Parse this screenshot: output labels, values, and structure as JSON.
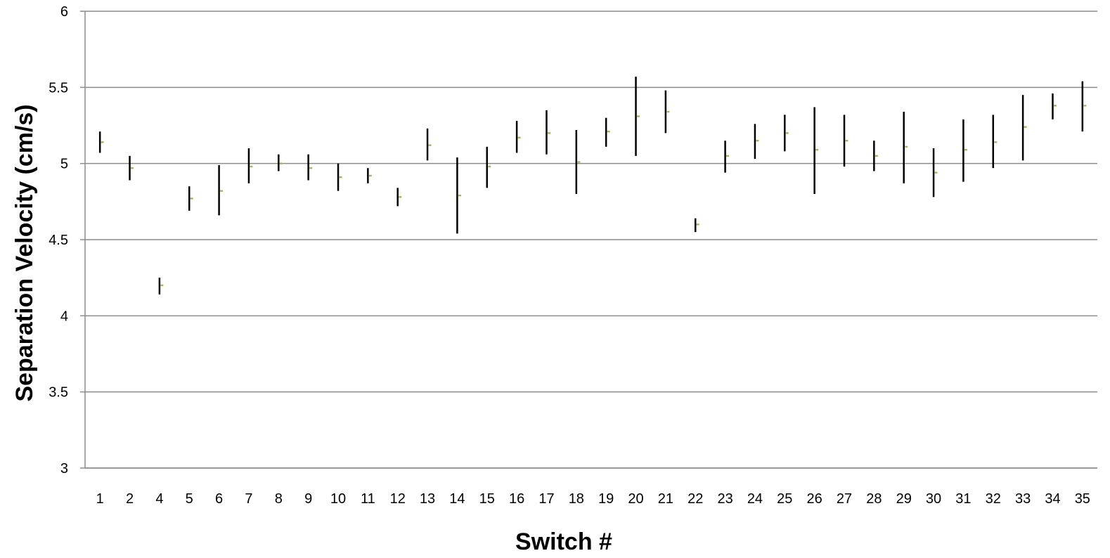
{
  "chart_data": {
    "type": "scatter",
    "title": "",
    "xlabel": "Switch #",
    "ylabel": "Separation Velocity (cm/s)",
    "ylim": [
      3,
      6
    ],
    "y_ticks": [
      "3",
      "3.5",
      "4",
      "4.5",
      "5",
      "5.5",
      "6"
    ],
    "grid": "horizontal",
    "categories": [
      "1",
      "2",
      "4",
      "5",
      "6",
      "7",
      "8",
      "9",
      "10",
      "11",
      "12",
      "13",
      "14",
      "15",
      "16",
      "17",
      "18",
      "19",
      "20",
      "21",
      "22",
      "23",
      "24",
      "25",
      "26",
      "27",
      "28",
      "29",
      "30",
      "31",
      "32",
      "33",
      "34",
      "35"
    ],
    "series": [
      {
        "values": [
          5.14,
          4.97,
          4.2,
          4.77,
          4.82,
          4.98,
          5.0,
          4.97,
          4.91,
          4.92,
          4.78,
          5.12,
          4.79,
          4.98,
          5.17,
          5.2,
          5.01,
          5.21,
          5.31,
          5.34,
          4.6,
          5.05,
          5.15,
          5.2,
          5.09,
          5.15,
          5.05,
          5.11,
          4.94,
          5.09,
          5.14,
          5.24,
          5.38,
          5.38
        ],
        "error_low": [
          5.07,
          4.89,
          4.14,
          4.69,
          4.66,
          4.87,
          4.95,
          4.89,
          4.82,
          4.87,
          4.72,
          5.02,
          4.54,
          4.84,
          5.07,
          5.06,
          4.8,
          5.11,
          5.05,
          5.2,
          4.55,
          4.94,
          5.03,
          5.08,
          4.8,
          4.98,
          4.95,
          4.87,
          4.78,
          4.88,
          4.97,
          5.02,
          5.29,
          5.21
        ],
        "error_high": [
          5.21,
          5.05,
          4.25,
          4.85,
          4.99,
          5.1,
          5.06,
          5.06,
          5.0,
          4.97,
          4.84,
          5.23,
          5.04,
          5.11,
          5.28,
          5.35,
          5.22,
          5.3,
          5.57,
          5.48,
          4.64,
          5.15,
          5.26,
          5.32,
          5.37,
          5.32,
          5.15,
          5.34,
          5.1,
          5.29,
          5.32,
          5.45,
          5.46,
          5.54
        ],
        "point_color": "#9bbb59",
        "bar_color": "#000000"
      }
    ]
  }
}
